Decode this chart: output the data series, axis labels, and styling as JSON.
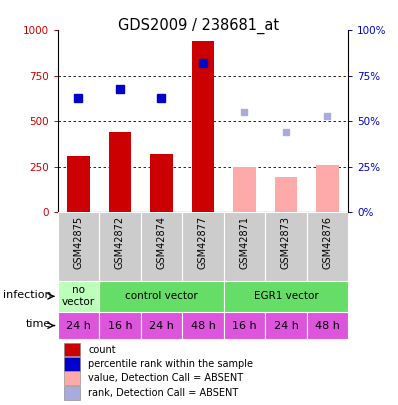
{
  "title": "GDS2009 / 238681_at",
  "samples": [
    "GSM42875",
    "GSM42872",
    "GSM42874",
    "GSM42877",
    "GSM42871",
    "GSM42873",
    "GSM42876"
  ],
  "bar_values": [
    310,
    440,
    320,
    940,
    null,
    null,
    null
  ],
  "bar_colors_present": "#cc0000",
  "bar_values_absent": [
    null,
    null,
    null,
    null,
    248,
    195,
    258
  ],
  "bar_colors_absent": "#ffaaaa",
  "rank_values_present": [
    63,
    68,
    63,
    82,
    null,
    null,
    null
  ],
  "rank_colors_present": "#0000cc",
  "rank_values_absent": [
    null,
    null,
    null,
    null,
    55,
    44,
    53
  ],
  "rank_colors_absent": "#aaaadd",
  "ylim": [
    0,
    1000
  ],
  "yticks": [
    0,
    250,
    500,
    750,
    1000
  ],
  "ylim_right": [
    0,
    100
  ],
  "yticks_right": [
    0,
    25,
    50,
    75,
    100
  ],
  "time_labels": [
    "24 h",
    "16 h",
    "24 h",
    "48 h",
    "16 h",
    "24 h",
    "48 h"
  ],
  "time_color": "#dd55dd",
  "bg_color": "#cccccc",
  "no_vector_color": "#bbffbb",
  "control_vector_color": "#66dd66",
  "egr1_vector_color": "#66dd66",
  "legend_items": [
    {
      "label": "count",
      "color": "#cc0000"
    },
    {
      "label": "percentile rank within the sample",
      "color": "#0000cc"
    },
    {
      "label": "value, Detection Call = ABSENT",
      "color": "#ffaaaa"
    },
    {
      "label": "rank, Detection Call = ABSENT",
      "color": "#aaaadd"
    }
  ]
}
